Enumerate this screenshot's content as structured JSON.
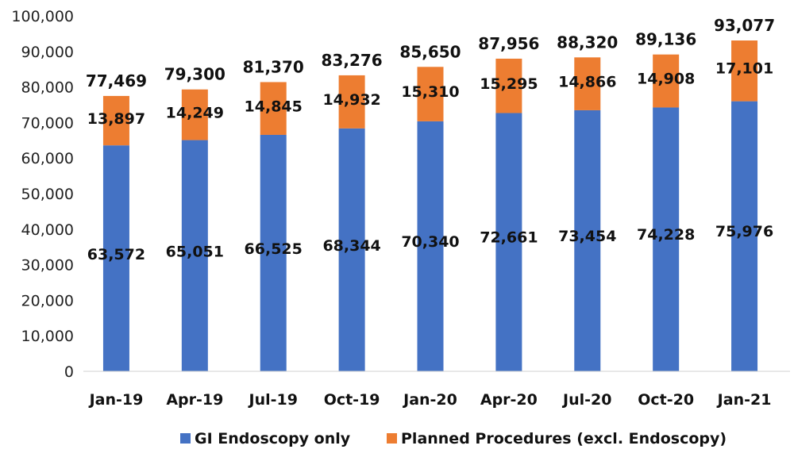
{
  "chart_data": {
    "type": "bar",
    "stacked": true,
    "title": "",
    "xlabel": "",
    "ylabel": "",
    "ylim": [
      0,
      100000
    ],
    "ytick_step": 10000,
    "ytick_labels": [
      "0",
      "10,000",
      "20,000",
      "30,000",
      "40,000",
      "50,000",
      "60,000",
      "70,000",
      "80,000",
      "90,000",
      "100,000"
    ],
    "grid": false,
    "legend_position": "bottom",
    "categories": [
      "Jan-19",
      "Apr-19",
      "Jul-19",
      "Oct-19",
      "Jan-20",
      "Apr-20",
      "Jul-20",
      "Oct-20",
      "Jan-21"
    ],
    "series": [
      {
        "name": "GI Endoscopy only",
        "color": "#4472C4",
        "values": [
          63572,
          65051,
          66525,
          68344,
          70340,
          72661,
          73454,
          74228,
          75976
        ],
        "labels": [
          "63,572",
          "65,051",
          "66,525",
          "68,344",
          "70,340",
          "72,661",
          "73,454",
          "74,228",
          "75,976"
        ]
      },
      {
        "name": "Planned Procedures (excl. Endoscopy)",
        "color": "#ED7D31",
        "values": [
          13897,
          14249,
          14845,
          14932,
          15310,
          15295,
          14866,
          14908,
          17101
        ],
        "labels": [
          "13,897",
          "14,249",
          "14,845",
          "14,932",
          "15,310",
          "15,295",
          "14,866",
          "14,908",
          "17,101"
        ]
      }
    ],
    "totals": [
      77469,
      79300,
      81370,
      83276,
      85650,
      87956,
      88320,
      89136,
      93077
    ],
    "total_labels": [
      "77,469",
      "79,300",
      "81,370",
      "83,276",
      "85,650",
      "87,956",
      "88,320",
      "89,136",
      "93,077"
    ]
  }
}
